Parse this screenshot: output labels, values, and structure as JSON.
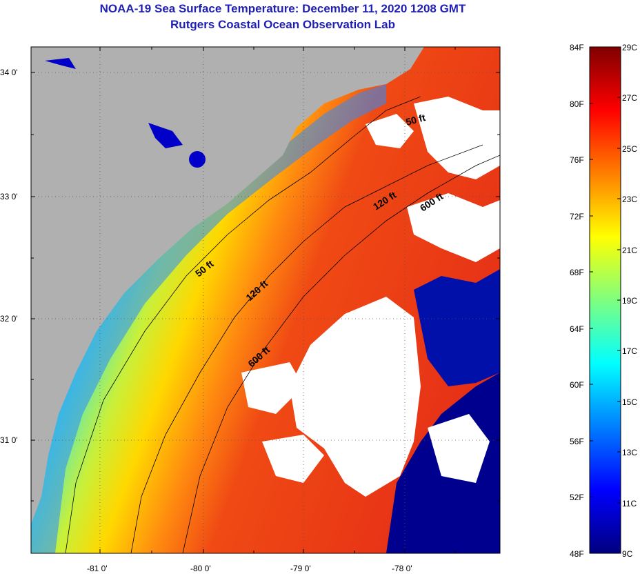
{
  "title": "NOAA-19 Sea Surface Temperature:  December 11, 2020 1208 GMT",
  "subtitle": "Rutgers Coastal Ocean Observation Lab",
  "map": {
    "lon_ticks": [
      "-81 0'",
      "-80 0'",
      "-79 0'",
      "-78 0'"
    ],
    "lat_ticks": [
      "34 0'",
      "33 0'",
      "32 0'",
      "31 0'"
    ],
    "contour_labels": [
      "50 ft",
      "120 ft",
      "600 ft",
      "50 ft",
      "120 ft",
      "600 ft"
    ],
    "colors": {
      "land": "#b0b0b0",
      "cloud": "#ffffff",
      "cold": "#00008f",
      "warm": "#e8261a"
    }
  },
  "colorbar": {
    "fahrenheit_labels": [
      "84F",
      "80F",
      "76F",
      "72F",
      "68F",
      "64F",
      "60F",
      "56F",
      "52F",
      "48F"
    ],
    "celsius_labels": [
      "29C",
      "27C",
      "25C",
      "23C",
      "21C",
      "19C",
      "17C",
      "15C",
      "13C",
      "11C",
      "9C"
    ],
    "colors": [
      "#00007f",
      "#0000ff",
      "#007fff",
      "#00ffff",
      "#7fff7f",
      "#ffff00",
      "#ff7f00",
      "#ff0000",
      "#7f0000"
    ]
  }
}
